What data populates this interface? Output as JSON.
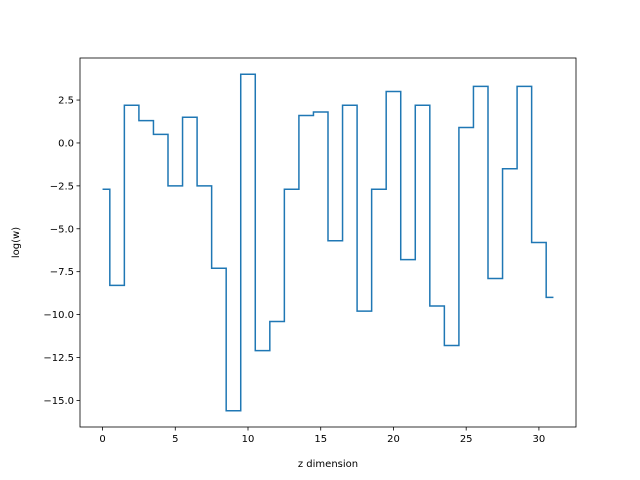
{
  "chart_data": {
    "type": "line",
    "drawstyle": "steps-mid",
    "title": "",
    "xlabel": "z dimension",
    "ylabel": "log(w)",
    "xlim": [
      -1.55,
      32.55
    ],
    "ylim": [
      -16.55,
      4.95
    ],
    "x_ticks": [
      0,
      5,
      10,
      15,
      20,
      25,
      30
    ],
    "y_ticks": [
      -15.0,
      -12.5,
      -10.0,
      -7.5,
      -5.0,
      -2.5,
      0.0,
      2.5
    ],
    "x_tick_labels": [
      "0",
      "5",
      "10",
      "15",
      "20",
      "25",
      "30"
    ],
    "y_tick_labels": [
      "−15.0",
      "−12.5",
      "−10.0",
      "−7.5",
      "−5.0",
      "−2.5",
      "0.0",
      "2.5"
    ],
    "grid": false,
    "series": [
      {
        "color": "#1f77b4",
        "x": [
          0,
          1,
          2,
          3,
          4,
          5,
          6,
          7,
          8,
          9,
          10,
          11,
          12,
          13,
          14,
          15,
          16,
          17,
          18,
          19,
          20,
          21,
          22,
          23,
          24,
          25,
          26,
          27,
          28,
          29,
          30,
          31
        ],
        "values": [
          -2.7,
          -8.3,
          2.2,
          1.3,
          0.5,
          -2.5,
          1.5,
          -2.5,
          -7.3,
          -15.6,
          4.0,
          -12.1,
          -10.4,
          -2.7,
          1.6,
          1.8,
          -5.7,
          2.2,
          -9.8,
          -2.7,
          3.0,
          -6.8,
          2.2,
          -9.5,
          -11.8,
          0.9,
          3.3,
          -7.9,
          -1.5,
          3.3,
          -5.8,
          -9.0
        ]
      }
    ]
  }
}
